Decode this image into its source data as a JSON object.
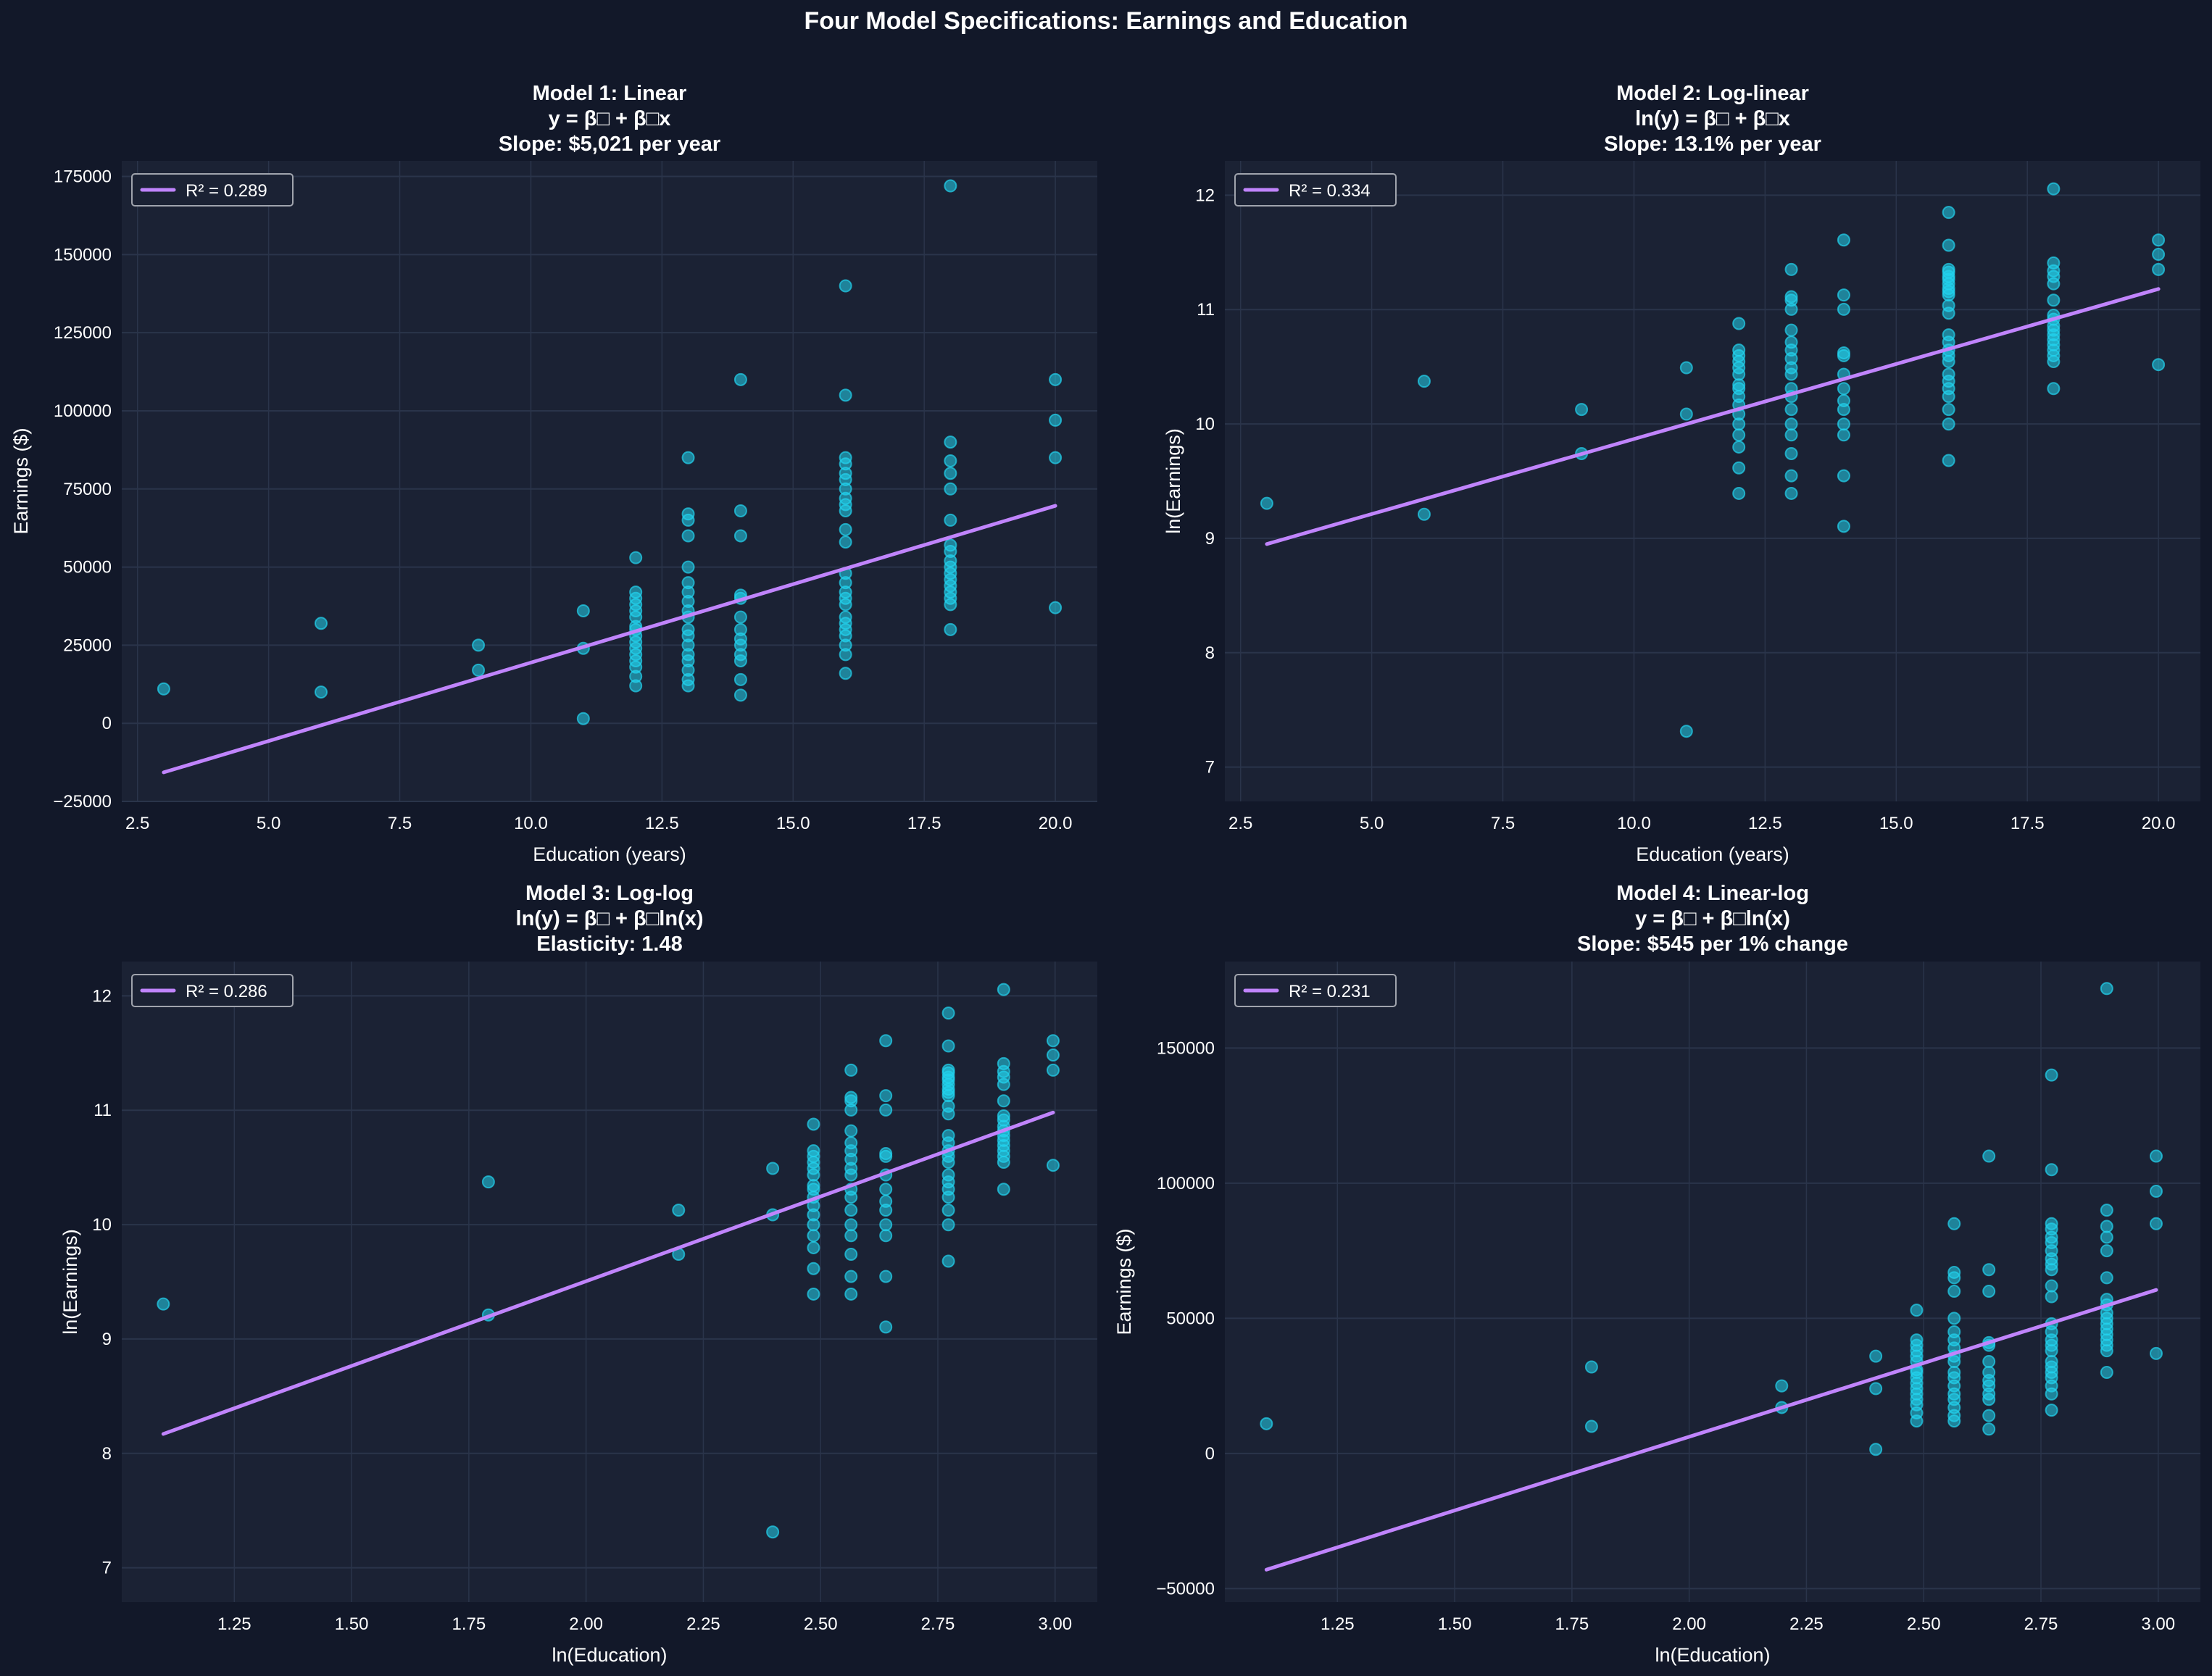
{
  "suptitle": "Four Model Specifications: Earnings and Education",
  "colors": {
    "background": "#121829",
    "axes_bg": "#1b2234",
    "grid": "#2a344a",
    "points": "#22d3ee",
    "fit_line": "#c084fc",
    "text": "#ffffff",
    "legend_border": "#a0a4ad"
  },
  "chart_data": [
    {
      "type": "scatter",
      "title": [
        "Model 1: Linear",
        "y = β□ + β□x",
        "Slope: $5,021 per year"
      ],
      "xlabel": "Education (years)",
      "ylabel": "Earnings ($)",
      "xlim": [
        2.2,
        20.8
      ],
      "ylim": [
        -25000,
        180000
      ],
      "xticks": [
        2.5,
        5.0,
        7.5,
        10.0,
        12.5,
        15.0,
        17.5,
        20.0
      ],
      "xtick_labels": [
        "2.5",
        "5.0",
        "7.5",
        "10.0",
        "12.5",
        "15.0",
        "17.5",
        "20.0"
      ],
      "yticks": [
        -25000,
        0,
        25000,
        50000,
        75000,
        100000,
        125000,
        150000,
        175000
      ],
      "ytick_labels": [
        "−25000",
        "0",
        "25000",
        "50000",
        "75000",
        "100000",
        "125000",
        "150000",
        "175000"
      ],
      "x_transform": "none",
      "y_transform": "none",
      "fit": {
        "x": [
          3,
          20
        ],
        "y": [
          -15700,
          69600
        ]
      },
      "legend": {
        "label": "R² = 0.289",
        "position": "upper-left"
      },
      "grid": true
    },
    {
      "type": "scatter",
      "title": [
        "Model 2: Log-linear",
        "ln(y) = β□ + β□x",
        "Slope: 13.1% per year"
      ],
      "xlabel": "Education (years)",
      "ylabel": "ln(Earnings)",
      "xlim": [
        2.2,
        20.8
      ],
      "ylim": [
        6.7,
        12.3
      ],
      "xticks": [
        2.5,
        5.0,
        7.5,
        10.0,
        12.5,
        15.0,
        17.5,
        20.0
      ],
      "xtick_labels": [
        "2.5",
        "5.0",
        "7.5",
        "10.0",
        "12.5",
        "15.0",
        "17.5",
        "20.0"
      ],
      "yticks": [
        7,
        8,
        9,
        10,
        11,
        12
      ],
      "ytick_labels": [
        "7",
        "8",
        "9",
        "10",
        "11",
        "12"
      ],
      "x_transform": "none",
      "y_transform": "log",
      "fit": {
        "x": [
          3,
          20
        ],
        "y": [
          8.95,
          11.18
        ]
      },
      "legend": {
        "label": "R² = 0.334",
        "position": "upper-left"
      },
      "grid": true
    },
    {
      "type": "scatter",
      "title": [
        "Model 3: Log-log",
        "ln(y) = β□ + β□ln(x)",
        "Elasticity: 1.48"
      ],
      "xlabel": "ln(Education)",
      "ylabel": "ln(Earnings)",
      "xlim": [
        1.01,
        3.09
      ],
      "ylim": [
        6.7,
        12.3
      ],
      "xticks": [
        1.25,
        1.5,
        1.75,
        2.0,
        2.25,
        2.5,
        2.75,
        3.0
      ],
      "xtick_labels": [
        "1.25",
        "1.50",
        "1.75",
        "2.00",
        "2.25",
        "2.50",
        "2.75",
        "3.00"
      ],
      "yticks": [
        7,
        8,
        9,
        10,
        11,
        12
      ],
      "ytick_labels": [
        "7",
        "8",
        "9",
        "10",
        "11",
        "12"
      ],
      "x_transform": "log",
      "y_transform": "log",
      "fit": {
        "x": [
          1.0986,
          2.9957
        ],
        "y": [
          8.17,
          10.98
        ]
      },
      "legend": {
        "label": "R² = 0.286",
        "position": "upper-left"
      },
      "grid": true
    },
    {
      "type": "scatter",
      "title": [
        "Model 4: Linear-log",
        "y = β□ + β□ln(x)",
        "Slope: $545 per 1% change"
      ],
      "xlabel": "ln(Education)",
      "ylabel": "Earnings ($)",
      "xlim": [
        1.01,
        3.09
      ],
      "ylim": [
        -55000,
        182000
      ],
      "xticks": [
        1.25,
        1.5,
        1.75,
        2.0,
        2.25,
        2.5,
        2.75,
        3.0
      ],
      "xtick_labels": [
        "1.25",
        "1.50",
        "1.75",
        "2.00",
        "2.25",
        "2.50",
        "2.75",
        "3.00"
      ],
      "yticks": [
        -50000,
        0,
        50000,
        100000,
        150000
      ],
      "ytick_labels": [
        "−50000",
        "0",
        "50000",
        "100000",
        "150000"
      ],
      "x_transform": "log",
      "y_transform": "none",
      "fit": {
        "x": [
          1.0986,
          2.9957
        ],
        "y": [
          -43000,
          60500
        ]
      },
      "legend": {
        "label": "R² = 0.231",
        "position": "upper-left"
      },
      "grid": true
    }
  ],
  "observations": {
    "education": [
      3,
      6,
      6,
      9,
      9,
      11,
      11,
      11,
      12,
      12,
      12,
      12,
      12,
      12,
      12,
      12,
      12,
      12,
      12,
      12,
      12,
      12,
      12,
      12,
      13,
      13,
      13,
      13,
      13,
      13,
      13,
      13,
      13,
      13,
      13,
      13,
      13,
      13,
      13,
      13,
      13,
      13,
      14,
      14,
      14,
      14,
      14,
      14,
      14,
      14,
      14,
      14,
      14,
      14,
      14,
      16,
      16,
      16,
      16,
      16,
      16,
      16,
      16,
      16,
      16,
      16,
      16,
      16,
      16,
      16,
      16,
      16,
      16,
      16,
      16,
      16,
      16,
      16,
      16,
      18,
      18,
      18,
      18,
      18,
      18,
      18,
      18,
      18,
      18,
      18,
      18,
      18,
      18,
      18,
      18,
      18,
      20,
      20,
      20,
      20
    ],
    "earnings": [
      11000,
      32000,
      10000,
      25000,
      17000,
      36000,
      24000,
      1500,
      53000,
      42000,
      40000,
      38000,
      36000,
      34000,
      31000,
      30000,
      28000,
      26000,
      24000,
      22000,
      20000,
      18000,
      15000,
      12000,
      85000,
      67000,
      65000,
      60000,
      50000,
      45000,
      42000,
      39000,
      36000,
      34000,
      30000,
      28000,
      25000,
      22000,
      20000,
      17000,
      14000,
      12000,
      110000,
      68000,
      60000,
      41000,
      40000,
      34000,
      30000,
      27000,
      25000,
      22000,
      20000,
      14000,
      9000,
      140000,
      105000,
      85000,
      83000,
      80000,
      78000,
      75000,
      72000,
      70000,
      68000,
      62000,
      58000,
      48000,
      45000,
      42000,
      40000,
      38000,
      34000,
      32000,
      30000,
      28000,
      25000,
      22000,
      16000,
      172000,
      90000,
      84000,
      80000,
      75000,
      65000,
      57000,
      55000,
      52000,
      50000,
      48000,
      46000,
      44000,
      42000,
      40000,
      38000,
      30000,
      110000,
      97000,
      85000,
      37000
    ]
  }
}
